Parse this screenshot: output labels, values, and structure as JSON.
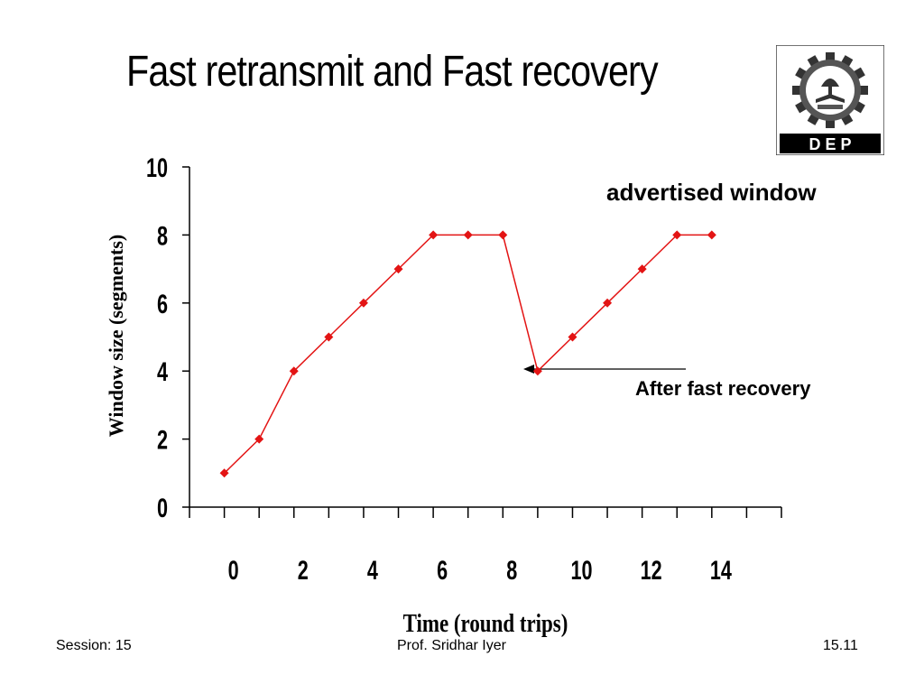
{
  "slide": {
    "title": "Fast retransmit and Fast recovery"
  },
  "logo": {
    "icon": "iit-bombay-cog-logo-icon",
    "text": "D E P"
  },
  "annotations": {
    "advertised_window": "advertised  window",
    "after_fast_recovery": "After fast recovery"
  },
  "footer": {
    "session": "Session: 15",
    "author": "Prof. Sridhar Iyer",
    "page": "15.11"
  },
  "chart_data": {
    "type": "line",
    "title": "",
    "xlabel": "Time (round trips)",
    "ylabel": "Window size (segments)",
    "xlim": [
      -1,
      16
    ],
    "ylim": [
      0,
      10
    ],
    "y_ticks": [
      0,
      2,
      4,
      6,
      8,
      10
    ],
    "x_tick_labels": [
      "0",
      "2",
      "4",
      "6",
      "8",
      "10",
      "12",
      "14"
    ],
    "grid": false,
    "legend": "none",
    "line_color": "#e31414",
    "marker_color": "#e31414",
    "series": [
      {
        "x": [
          0,
          1,
          2,
          3,
          4,
          5,
          6,
          7,
          8,
          9,
          10,
          11,
          12,
          13,
          14
        ],
        "values": [
          1,
          2,
          4,
          5,
          6,
          7,
          8,
          8,
          8,
          4,
          5,
          6,
          7,
          8,
          8
        ]
      }
    ]
  }
}
